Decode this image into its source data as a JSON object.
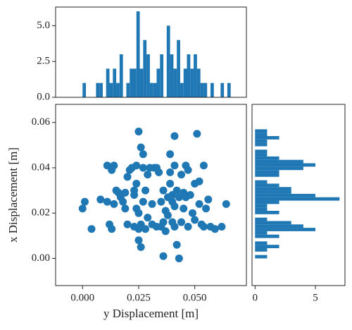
{
  "chart_data": [
    {
      "type": "scatter",
      "color": "#1f77b4",
      "xlabel": "y Displacement [m]",
      "ylabel": "x Displacement [m]",
      "xlim": [
        -0.012,
        0.073
      ],
      "ylim": [
        -0.012,
        0.068
      ],
      "xticks": [
        {
          "value": 0,
          "label": "0.000"
        },
        0.025,
        {
          "value": 0.05,
          "label": "0.050"
        }
      ],
      "yticks": [
        {
          "value": 0,
          "label": "0.00"
        },
        0.02,
        0.04,
        0.06
      ],
      "x": [
        0.0,
        0.001,
        0.004,
        0.008,
        0.011,
        0.011,
        0.012,
        0.013,
        0.013,
        0.014,
        0.014,
        0.015,
        0.016,
        0.017,
        0.018,
        0.019,
        0.019,
        0.02,
        0.02,
        0.021,
        0.022,
        0.023,
        0.023,
        0.023,
        0.024,
        0.024,
        0.024,
        0.025,
        0.025,
        0.025,
        0.025,
        0.026,
        0.026,
        0.026,
        0.027,
        0.027,
        0.027,
        0.028,
        0.028,
        0.029,
        0.029,
        0.03,
        0.031,
        0.031,
        0.032,
        0.033,
        0.033,
        0.034,
        0.035,
        0.035,
        0.036,
        0.036,
        0.036,
        0.037,
        0.037,
        0.038,
        0.038,
        0.039,
        0.039,
        0.039,
        0.04,
        0.04,
        0.04,
        0.041,
        0.041,
        0.041,
        0.041,
        0.042,
        0.042,
        0.043,
        0.043,
        0.044,
        0.044,
        0.045,
        0.045,
        0.046,
        0.046,
        0.047,
        0.047,
        0.048,
        0.049,
        0.05,
        0.05,
        0.051,
        0.052,
        0.052,
        0.053,
        0.054,
        0.054,
        0.055,
        0.056,
        0.057,
        0.059,
        0.062,
        0.064
      ],
      "values": [
        0.022,
        0.025,
        0.013,
        0.026,
        0.041,
        0.025,
        0.015,
        0.013,
        0.039,
        0.041,
        0.024,
        0.03,
        0.029,
        0.027,
        0.025,
        0.029,
        0.022,
        0.036,
        0.015,
        0.039,
        0.04,
        0.028,
        0.03,
        0.014,
        0.022,
        0.033,
        0.041,
        0.056,
        0.02,
        0.013,
        0.008,
        0.005,
        0.015,
        0.049,
        0.046,
        0.04,
        0.025,
        0.013,
        0.03,
        0.018,
        0.037,
        0.04,
        0.024,
        0.015,
        0.04,
        0.014,
        0.04,
        0.038,
        0.025,
        0.014,
        0.016,
        0.03,
        0.001,
        0.021,
        0.012,
        0.027,
        0.019,
        0.046,
        0.038,
        0.033,
        0.016,
        0.025,
        0.028,
        0.054,
        0.041,
        0.023,
        0.014,
        0.006,
        0.03,
        0.027,
        0.0,
        0.037,
        0.016,
        0.029,
        0.022,
        0.041,
        0.027,
        0.039,
        0.014,
        0.028,
        0.02,
        0.017,
        0.033,
        0.055,
        0.034,
        0.024,
        0.015,
        0.041,
        0.014,
        0.022,
        0.026,
        0.014,
        0.013,
        0.014,
        0.024
      ]
    },
    {
      "type": "histogram",
      "orientation": "vertical",
      "color": "#1f77b4",
      "xlim": [
        -0.012,
        0.073
      ],
      "ylim": [
        0,
        6.3
      ],
      "yticks": [
        {
          "value": 0,
          "label": "0.0"
        },
        2.5,
        {
          "value": 5,
          "label": "5.0"
        }
      ],
      "bins": [
        0,
        0.0015,
        0.003,
        0.0045,
        0.006,
        0.0075,
        0.009,
        0.0105,
        0.012,
        0.0135,
        0.015,
        0.0165,
        0.018,
        0.0195,
        0.021,
        0.0225,
        0.024,
        0.0255,
        0.027,
        0.0285,
        0.03,
        0.0315,
        0.033,
        0.0345,
        0.036,
        0.0375,
        0.039,
        0.0405,
        0.042,
        0.0435,
        0.045,
        0.0465,
        0.048,
        0.0495,
        0.051,
        0.0525,
        0.054,
        0.0555,
        0.057,
        0.0585,
        0.06,
        0.0615,
        0.063,
        0.0645,
        0.066
      ],
      "values": [
        1,
        0,
        0,
        0,
        1,
        1,
        0,
        2,
        1,
        2,
        1,
        3,
        0,
        1,
        2,
        2,
        6,
        2,
        4,
        3,
        1,
        1,
        2,
        3,
        0,
        5,
        3,
        2,
        4,
        1,
        2,
        3,
        2,
        3,
        2,
        1,
        1,
        0,
        1,
        0,
        0,
        1,
        0,
        1
      ]
    },
    {
      "type": "histogram",
      "orientation": "horizontal",
      "color": "#1f77b4",
      "xlim": [
        -0.25,
        7.45
      ],
      "ylim": [
        -0.012,
        0.068
      ],
      "xticks": [
        0,
        5
      ],
      "bins": [
        0,
        0.0015,
        0.003,
        0.0045,
        0.006,
        0.0075,
        0.009,
        0.0105,
        0.012,
        0.0135,
        0.015,
        0.0165,
        0.018,
        0.0195,
        0.021,
        0.0225,
        0.024,
        0.0255,
        0.027,
        0.0285,
        0.03,
        0.0315,
        0.033,
        0.0345,
        0.036,
        0.0375,
        0.039,
        0.0405,
        0.042,
        0.0435,
        0.045,
        0.0465,
        0.048,
        0.0495,
        0.051,
        0.0525,
        0.054,
        0.0555,
        0.057
      ],
      "values": [
        1,
        0,
        1,
        2,
        1,
        0,
        2,
        1,
        5,
        4,
        3,
        1,
        0,
        2,
        1,
        1,
        2,
        7,
        5,
        3,
        3,
        2,
        1,
        0,
        2,
        2,
        4,
        5,
        4,
        2,
        1,
        1,
        0,
        1,
        1,
        2,
        1,
        1
      ]
    }
  ]
}
